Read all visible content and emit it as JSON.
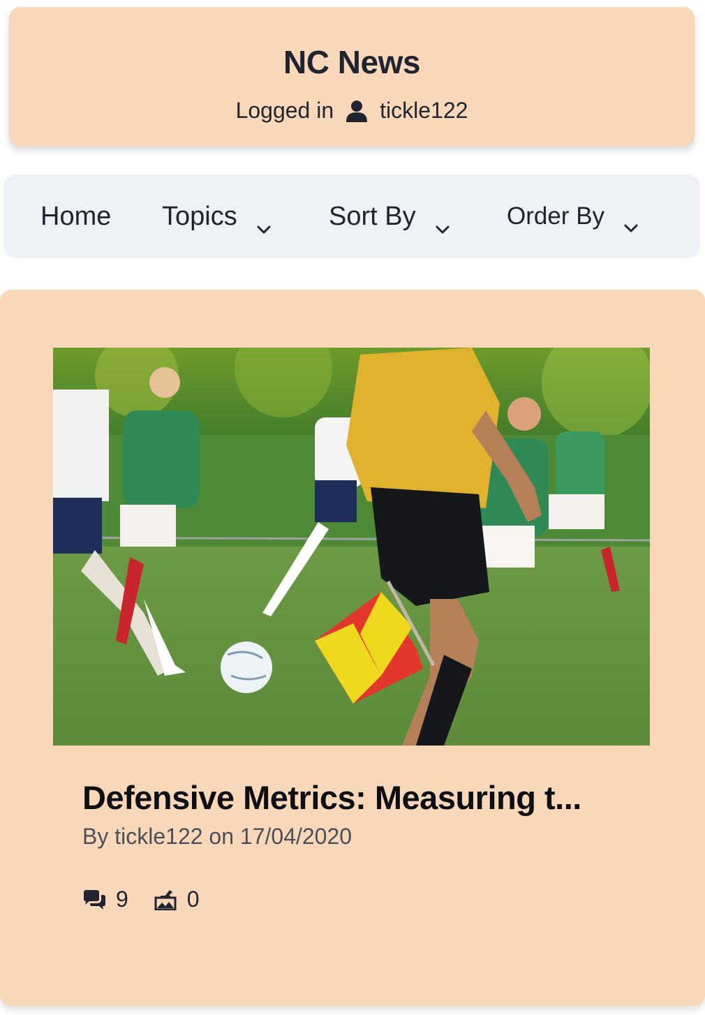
{
  "header": {
    "title": "NC News",
    "logged_in_label": "Logged in",
    "username": "tickle122"
  },
  "nav": {
    "home": "Home",
    "topics": "Topics",
    "sort_by": "Sort By",
    "order_by": "Order By"
  },
  "article": {
    "image_alt": "Soccer match with referee holding flag",
    "title": "Defensive Metrics: Measuring t...",
    "byline": "By tickle122 on 17/04/2020",
    "comment_count": "9",
    "vote_count": "0"
  },
  "icons": {
    "user": "user-icon",
    "chevron": "chevron-down-icon",
    "comments": "comments-icon",
    "votes": "vote-box-icon"
  },
  "colors": {
    "card_bg": "#f9d8b9",
    "nav_bg": "#eef1f5",
    "text": "#1f2430"
  }
}
